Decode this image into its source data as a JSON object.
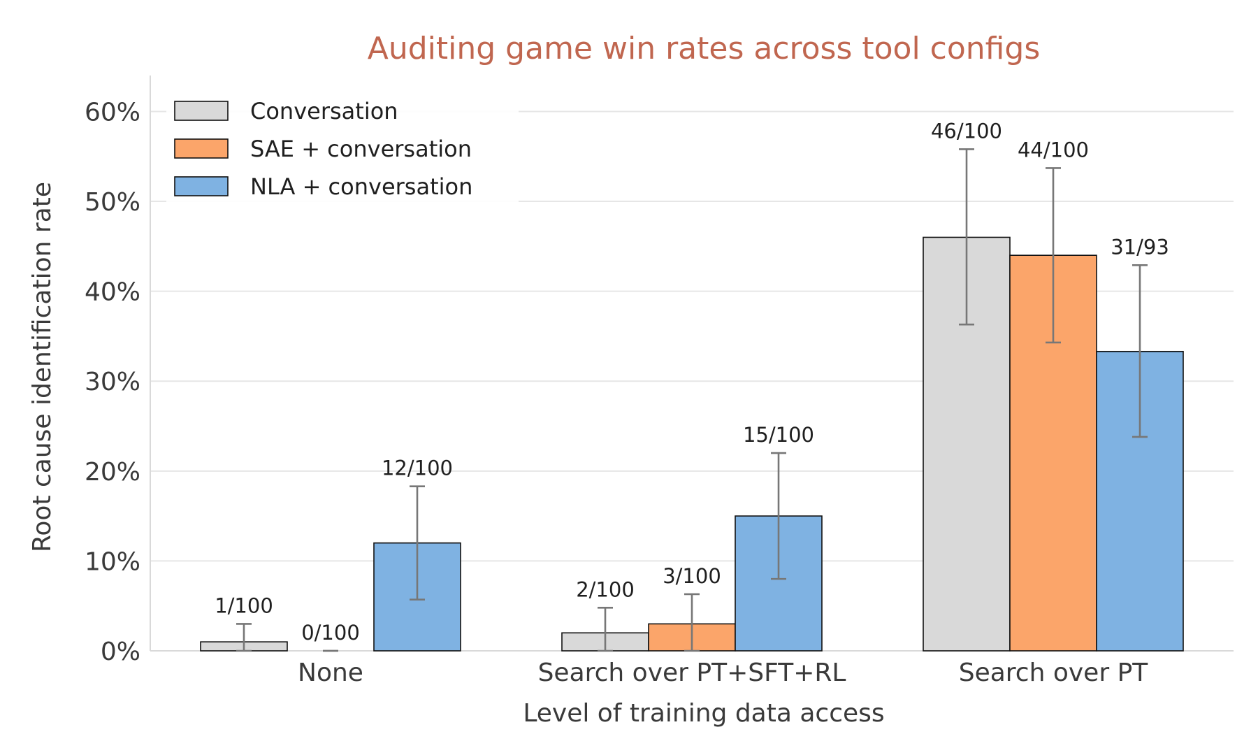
{
  "chart_data": {
    "type": "bar",
    "title": "Auditing game win rates across tool configs",
    "xlabel": "Level of training data access",
    "ylabel": "Root cause identification rate",
    "categories": [
      "None",
      "Search over PT+SFT+RL",
      "Search over PT"
    ],
    "ylim": [
      0,
      64
    ],
    "yticks": [
      0,
      10,
      20,
      30,
      40,
      50,
      60
    ],
    "ytick_labels": [
      "0%",
      "10%",
      "20%",
      "30%",
      "40%",
      "50%",
      "60%"
    ],
    "grid": true,
    "legend_position": "top-left",
    "series": [
      {
        "name": "Conversation",
        "color": "#d9d9d9",
        "values": [
          1,
          2,
          46
        ],
        "err_low": [
          0,
          0,
          36.3
        ],
        "err_high": [
          3,
          4.8,
          55.8
        ],
        "labels": [
          "1/100",
          "2/100",
          "46/100"
        ]
      },
      {
        "name": "SAE + conversation",
        "color": "#fba56a",
        "values": [
          0,
          3,
          44
        ],
        "err_low": [
          0,
          0,
          34.3
        ],
        "err_high": [
          0,
          6.3,
          53.7
        ],
        "labels": [
          "0/100",
          "3/100",
          "44/100"
        ]
      },
      {
        "name": "NLA + conversation",
        "color": "#7fb2e2",
        "values": [
          12,
          15,
          33.3
        ],
        "err_low": [
          5.7,
          8,
          23.8
        ],
        "err_high": [
          18.3,
          22,
          42.9
        ],
        "labels": [
          "12/100",
          "15/100",
          "31/93"
        ]
      }
    ]
  }
}
